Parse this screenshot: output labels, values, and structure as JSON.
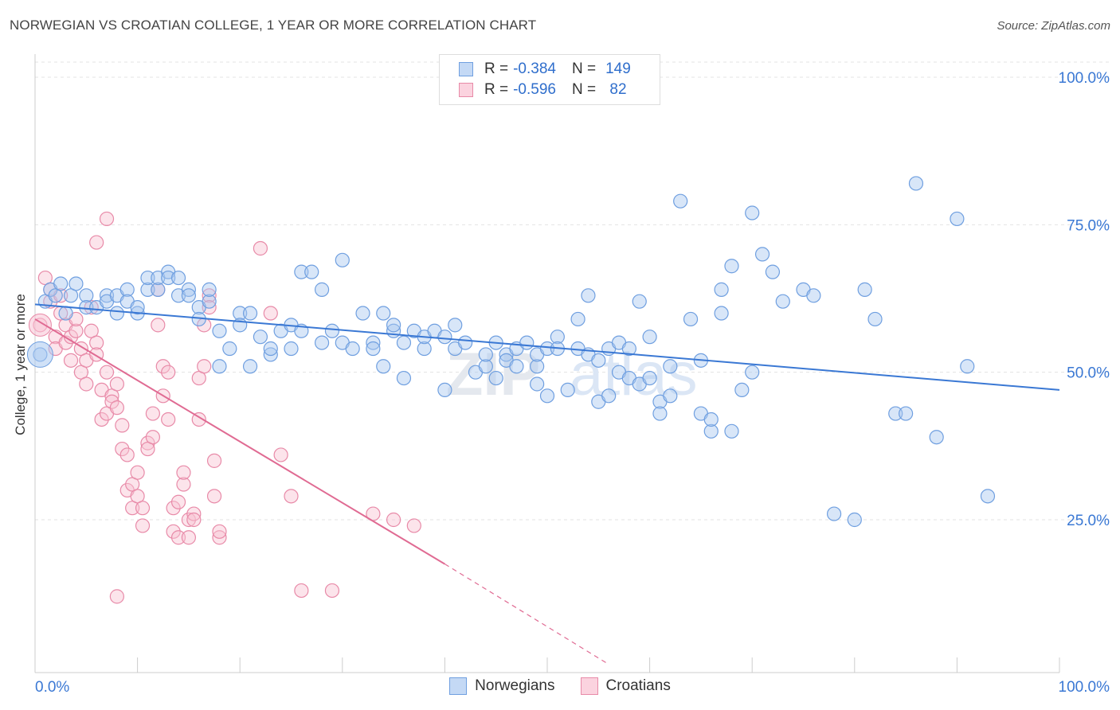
{
  "header": {
    "title": "NORWEGIAN VS CROATIAN COLLEGE, 1 YEAR OR MORE CORRELATION CHART",
    "source": "Source: ZipAtlas.com"
  },
  "legend": {
    "rows": [
      {
        "r_label": "R =",
        "r_value": "-0.384",
        "n_label": "N =",
        "n_value": "149",
        "color": "#a9c8f0",
        "border": "#6f9fe0"
      },
      {
        "r_label": "R =",
        "r_value": "-0.596",
        "n_label": "N =",
        "n_value": " 82",
        "color": "#f8c3d3",
        "border": "#e88aa8"
      }
    ]
  },
  "bottom_legend": [
    {
      "label": "Norwegians",
      "color": "#a9c8f0",
      "border": "#6f9fe0"
    },
    {
      "label": "Croatians",
      "color": "#f8c3d3",
      "border": "#e88aa8"
    }
  ],
  "chart_data": {
    "type": "scatter",
    "title": "NORWEGIAN VS CROATIAN COLLEGE, 1 YEAR OR MORE CORRELATION CHART",
    "xlabel": "",
    "ylabel": "College, 1 year or more",
    "xlim": [
      0,
      100
    ],
    "ylim": [
      0,
      105
    ],
    "x_tick_labels": [
      "0.0%",
      "100.0%"
    ],
    "y_ticks": [
      25,
      50,
      75,
      100
    ],
    "y_tick_labels": [
      "25.0%",
      "50.0%",
      "75.0%",
      "100.0%"
    ],
    "grid": true,
    "watermark": "ZIPatlas",
    "colors": {
      "norwegians": "#3a78d4",
      "croatians": "#e06b93",
      "axis_label": "#3a78d4"
    },
    "series": [
      {
        "name": "Norwegians",
        "trend": {
          "x0": 0,
          "y0": 61.5,
          "x1": 100,
          "y1": 47.0
        },
        "points": [
          [
            0.5,
            53
          ],
          [
            1,
            62
          ],
          [
            1.5,
            64
          ],
          [
            2,
            63
          ],
          [
            2.5,
            65
          ],
          [
            3,
            60
          ],
          [
            3.5,
            63
          ],
          [
            4,
            65
          ],
          [
            5,
            63
          ],
          [
            5,
            61
          ],
          [
            6,
            61
          ],
          [
            7,
            63
          ],
          [
            7,
            62
          ],
          [
            8,
            60
          ],
          [
            8,
            63
          ],
          [
            9,
            64
          ],
          [
            9,
            62
          ],
          [
            10,
            60
          ],
          [
            10,
            61
          ],
          [
            11,
            64
          ],
          [
            11,
            66
          ],
          [
            12,
            64
          ],
          [
            12,
            66
          ],
          [
            13,
            67
          ],
          [
            13,
            66
          ],
          [
            14,
            66
          ],
          [
            14,
            63
          ],
          [
            15,
            64
          ],
          [
            15,
            63
          ],
          [
            16,
            61
          ],
          [
            16,
            59
          ],
          [
            17,
            62
          ],
          [
            17,
            64
          ],
          [
            18,
            57
          ],
          [
            18,
            51
          ],
          [
            19,
            54
          ],
          [
            20,
            60
          ],
          [
            20,
            58
          ],
          [
            21,
            60
          ],
          [
            21,
            51
          ],
          [
            22,
            56
          ],
          [
            23,
            53
          ],
          [
            23,
            54
          ],
          [
            24,
            57
          ],
          [
            25,
            58
          ],
          [
            25,
            54
          ],
          [
            26,
            57
          ],
          [
            26,
            67
          ],
          [
            27,
            67
          ],
          [
            28,
            55
          ],
          [
            28,
            64
          ],
          [
            29,
            57
          ],
          [
            30,
            55
          ],
          [
            30,
            69
          ],
          [
            31,
            54
          ],
          [
            32,
            60
          ],
          [
            33,
            55
          ],
          [
            33,
            54
          ],
          [
            34,
            51
          ],
          [
            34,
            60
          ],
          [
            35,
            57
          ],
          [
            35,
            58
          ],
          [
            36,
            55
          ],
          [
            36,
            49
          ],
          [
            37,
            57
          ],
          [
            38,
            54
          ],
          [
            38,
            56
          ],
          [
            39,
            57
          ],
          [
            40,
            47
          ],
          [
            40,
            56
          ],
          [
            41,
            54
          ],
          [
            41,
            58
          ],
          [
            42,
            55
          ],
          [
            43,
            50
          ],
          [
            44,
            51
          ],
          [
            44,
            53
          ],
          [
            45,
            49
          ],
          [
            45,
            55
          ],
          [
            46,
            53
          ],
          [
            46,
            52
          ],
          [
            47,
            51
          ],
          [
            47,
            54
          ],
          [
            48,
            55
          ],
          [
            49,
            51
          ],
          [
            49,
            53
          ],
          [
            49,
            48
          ],
          [
            50,
            46
          ],
          [
            50,
            54
          ],
          [
            51,
            56
          ],
          [
            51,
            54
          ],
          [
            52,
            47
          ],
          [
            53,
            54
          ],
          [
            53,
            59
          ],
          [
            54,
            63
          ],
          [
            54,
            53
          ],
          [
            55,
            52
          ],
          [
            55,
            45
          ],
          [
            56,
            46
          ],
          [
            56,
            54
          ],
          [
            57,
            50
          ],
          [
            57,
            55
          ],
          [
            58,
            49
          ],
          [
            58,
            54
          ],
          [
            59,
            48
          ],
          [
            59,
            62
          ],
          [
            60,
            49
          ],
          [
            60,
            56
          ],
          [
            61,
            45
          ],
          [
            61,
            43
          ],
          [
            62,
            51
          ],
          [
            62,
            46
          ],
          [
            63,
            79
          ],
          [
            64,
            59
          ],
          [
            65,
            43
          ],
          [
            65,
            52
          ],
          [
            66,
            40
          ],
          [
            66,
            42
          ],
          [
            67,
            64
          ],
          [
            67,
            60
          ],
          [
            68,
            40
          ],
          [
            68,
            68
          ],
          [
            69,
            47
          ],
          [
            70,
            50
          ],
          [
            70,
            77
          ],
          [
            71,
            70
          ],
          [
            72,
            67
          ],
          [
            73,
            62
          ],
          [
            75,
            64
          ],
          [
            76,
            63
          ],
          [
            78,
            26
          ],
          [
            80,
            25
          ],
          [
            81,
            64
          ],
          [
            82,
            59
          ],
          [
            84,
            43
          ],
          [
            85,
            43
          ],
          [
            86,
            82
          ],
          [
            88,
            39
          ],
          [
            90,
            76
          ],
          [
            91,
            51
          ],
          [
            93,
            29
          ]
        ]
      },
      {
        "name": "Croatians",
        "trend": {
          "x0": 0,
          "y0": 59.0,
          "x1": 40,
          "y1": 17.5
        },
        "trend_dashed_to": {
          "x": 56,
          "y": 0.5
        },
        "points": [
          [
            0.5,
            58
          ],
          [
            1,
            66
          ],
          [
            1.5,
            62
          ],
          [
            1.5,
            64
          ],
          [
            2,
            56
          ],
          [
            2,
            54
          ],
          [
            2.5,
            60
          ],
          [
            2.5,
            63
          ],
          [
            3,
            58
          ],
          [
            3,
            55
          ],
          [
            3.5,
            52
          ],
          [
            3.5,
            56
          ],
          [
            4,
            57
          ],
          [
            4,
            59
          ],
          [
            4.5,
            50
          ],
          [
            4.5,
            54
          ],
          [
            5,
            52
          ],
          [
            5,
            48
          ],
          [
            5.5,
            57
          ],
          [
            5.5,
            61
          ],
          [
            6,
            55
          ],
          [
            6,
            53
          ],
          [
            6.5,
            47
          ],
          [
            6.5,
            42
          ],
          [
            7,
            43
          ],
          [
            7,
            50
          ],
          [
            7.5,
            46
          ],
          [
            7.5,
            45
          ],
          [
            8,
            44
          ],
          [
            8,
            48
          ],
          [
            8.5,
            41
          ],
          [
            8.5,
            37
          ],
          [
            9,
            36
          ],
          [
            9,
            30
          ],
          [
            9.5,
            31
          ],
          [
            9.5,
            27
          ],
          [
            10,
            33
          ],
          [
            10,
            29
          ],
          [
            10.5,
            27
          ],
          [
            10.5,
            24
          ],
          [
            11,
            38
          ],
          [
            11,
            37
          ],
          [
            11.5,
            43
          ],
          [
            11.5,
            39
          ],
          [
            12,
            64
          ],
          [
            12,
            58
          ],
          [
            12.5,
            51
          ],
          [
            12.5,
            46
          ],
          [
            13,
            50
          ],
          [
            13,
            42
          ],
          [
            13.5,
            27
          ],
          [
            13.5,
            23
          ],
          [
            14,
            28
          ],
          [
            14,
            22
          ],
          [
            14.5,
            31
          ],
          [
            14.5,
            33
          ],
          [
            15,
            22
          ],
          [
            15,
            25
          ],
          [
            15.5,
            26
          ],
          [
            15.5,
            25
          ],
          [
            16,
            42
          ],
          [
            16,
            49
          ],
          [
            16.5,
            51
          ],
          [
            16.5,
            58
          ],
          [
            17,
            63
          ],
          [
            17,
            61
          ],
          [
            17.5,
            29
          ],
          [
            17.5,
            35
          ],
          [
            18,
            22
          ],
          [
            18,
            23
          ],
          [
            7,
            76
          ],
          [
            6,
            72
          ],
          [
            22,
            71
          ],
          [
            23,
            60
          ],
          [
            24,
            36
          ],
          [
            25,
            29
          ],
          [
            26,
            13
          ],
          [
            29,
            13
          ],
          [
            33,
            26
          ],
          [
            35,
            25
          ],
          [
            37,
            24
          ],
          [
            8,
            12
          ]
        ]
      }
    ]
  }
}
